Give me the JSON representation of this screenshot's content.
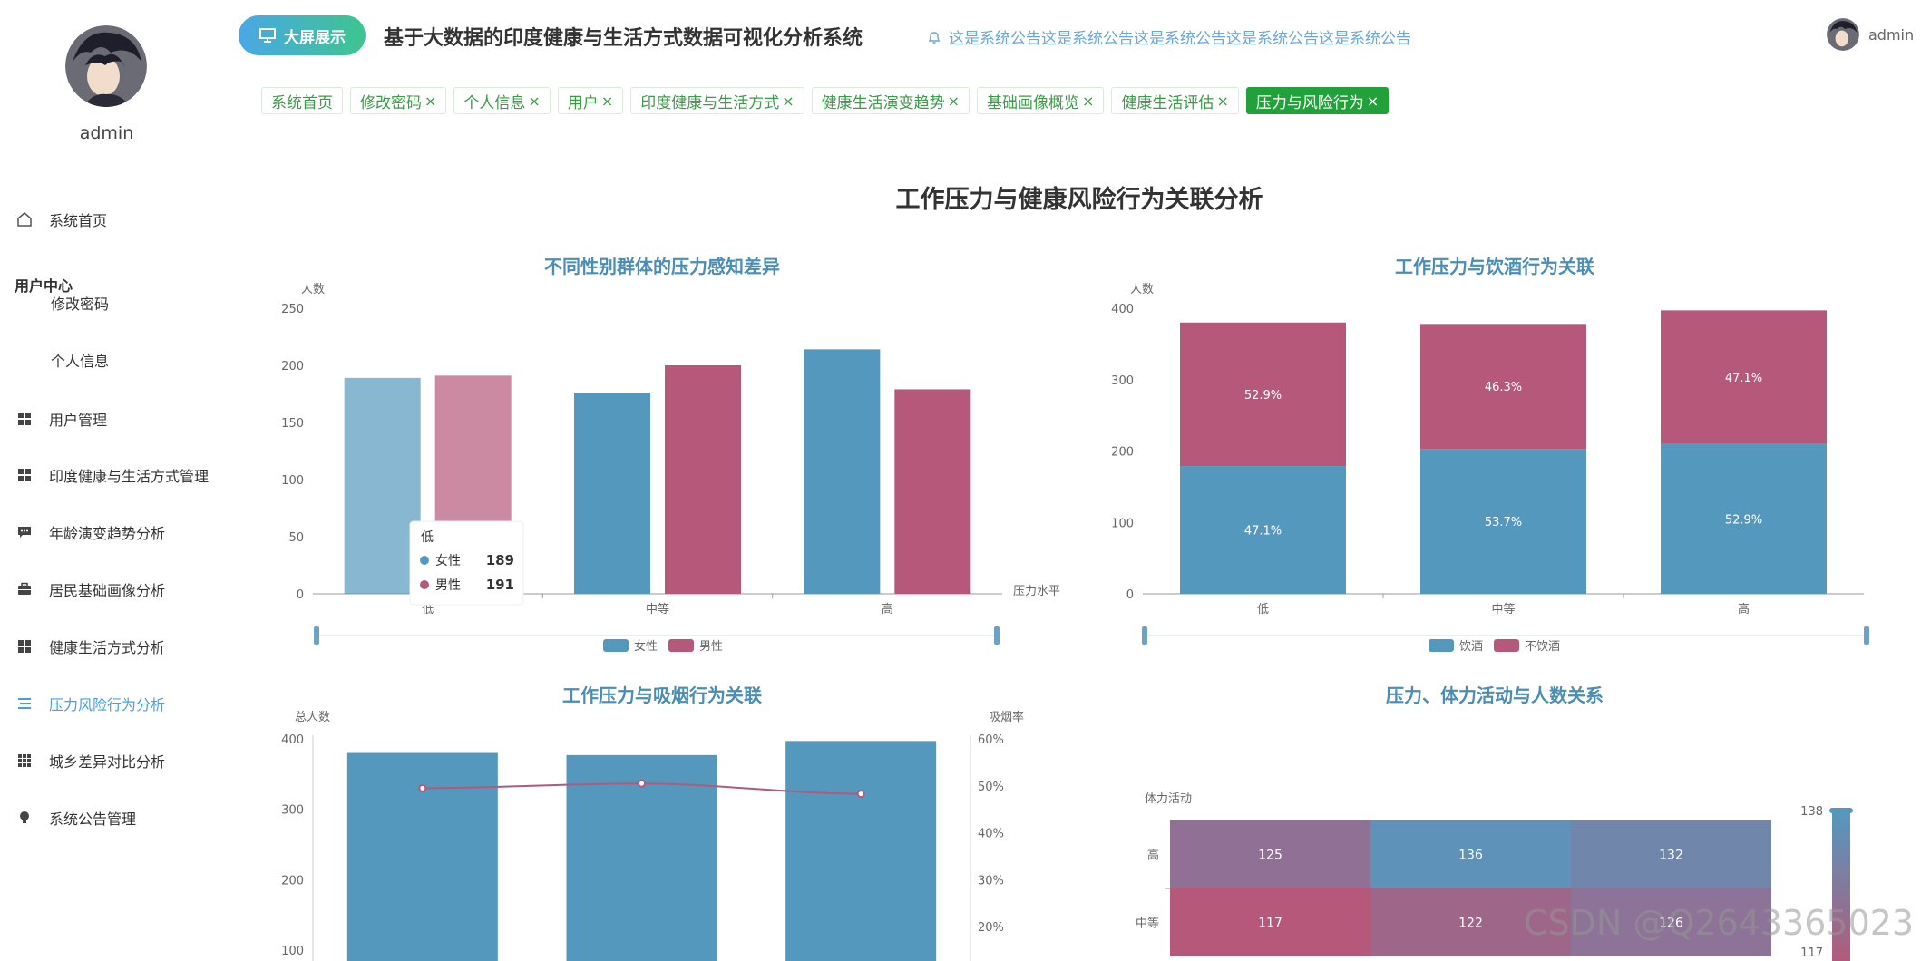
{
  "user": {
    "name": "admin"
  },
  "header": {
    "big_screen_label": "大屏展示",
    "system_title": "基于大数据的印度健康与生活方式数据可视化分析系统",
    "notice": "这是系统公告这是系统公告这是系统公告这是系统公告这是系统公告",
    "user_label": "admin"
  },
  "tabs": [
    {
      "label": "系统首页",
      "close": ""
    },
    {
      "label": "修改密码",
      "close": "×"
    },
    {
      "label": "个人信息",
      "close": "×"
    },
    {
      "label": "用户",
      "close": "×"
    },
    {
      "label": "印度健康与生活方式",
      "close": "×"
    },
    {
      "label": "健康生活演变趋势",
      "close": "×"
    },
    {
      "label": "基础画像概览",
      "close": "×"
    },
    {
      "label": "健康生活评估",
      "close": "×"
    },
    {
      "label": "压力与风险行为",
      "close": "×"
    }
  ],
  "sidebar": {
    "home": "系统首页",
    "user_center": "用户中心",
    "change_password": "修改密码",
    "personal_info": "个人信息",
    "items": [
      {
        "label": "用户管理",
        "icon": "grid-icon"
      },
      {
        "label": "印度健康与生活方式管理",
        "icon": "grid-icon"
      },
      {
        "label": "年龄演变趋势分析",
        "icon": "chat-icon"
      },
      {
        "label": "居民基础画像分析",
        "icon": "briefcase-icon"
      },
      {
        "label": "健康生活方式分析",
        "icon": "grid-icon"
      },
      {
        "label": "压力风险行为分析",
        "icon": "list-icon"
      },
      {
        "label": "城乡差异对比分析",
        "icon": "apps-icon"
      },
      {
        "label": "系统公告管理",
        "icon": "bulb-icon"
      }
    ]
  },
  "page_title": "工作压力与健康风险行为关联分析",
  "chart_data": [
    {
      "type": "bar",
      "title": "不同性别群体的压力感知差异",
      "ylabel": "人数",
      "xlabel": "压力水平",
      "categories": [
        "低",
        "中等",
        "高"
      ],
      "series": [
        {
          "name": "女性",
          "values": [
            189,
            176,
            214
          ],
          "color": "#5598be"
        },
        {
          "name": "男性",
          "values": [
            191,
            200,
            179
          ],
          "color": "#b5587a"
        }
      ],
      "ylim": [
        0,
        250
      ],
      "yticks": [
        "0",
        "50",
        "100",
        "150",
        "200",
        "250"
      ],
      "tooltip": {
        "title": "低",
        "rows": [
          {
            "name": "女性",
            "value": "189"
          },
          {
            "name": "男性",
            "value": "191"
          }
        ]
      }
    },
    {
      "type": "bar",
      "title": "工作压力与饮酒行为关联",
      "ylabel": "人数",
      "categories": [
        "低",
        "中等",
        "高"
      ],
      "series": [
        {
          "name": "饮酒",
          "values": [
            179,
            203,
            210
          ],
          "labels": [
            "47.1%",
            "53.7%",
            "52.9%"
          ],
          "color": "#5598be"
        },
        {
          "name": "不饮酒",
          "values": [
            201,
            175,
            187
          ],
          "labels": [
            "52.9%",
            "46.3%",
            "47.1%"
          ],
          "color": "#b5587a"
        }
      ],
      "stacked": true,
      "ylim": [
        0,
        400
      ],
      "yticks": [
        "0",
        "100",
        "200",
        "300",
        "400"
      ]
    },
    {
      "type": "bar",
      "title": "工作压力与吸烟行为关联",
      "ylabel": "总人数",
      "ylabel_right": "吸烟率",
      "bars": [
        380,
        377,
        397
      ],
      "line": [
        49.5,
        50.5,
        48.3
      ],
      "ylim": [
        100,
        400
      ],
      "ylim_right": [
        15,
        60
      ],
      "yticks": [
        "100",
        "200",
        "300",
        "400"
      ],
      "yticks_right": [
        "20%",
        "30%",
        "40%",
        "50%",
        "60%"
      ],
      "bar_color": "#5598be",
      "line_color": "#b5587a"
    },
    {
      "type": "heatmap",
      "title": "压力、体力活动与人数关系",
      "ylabel": "体力活动",
      "rows": [
        "高",
        "中等"
      ],
      "cells": [
        [
          125,
          136,
          132
        ],
        [
          117,
          122,
          126
        ]
      ],
      "visual_map": {
        "max": "138",
        "min": "117"
      }
    }
  ],
  "watermark": "CSDN @Q2643365023"
}
